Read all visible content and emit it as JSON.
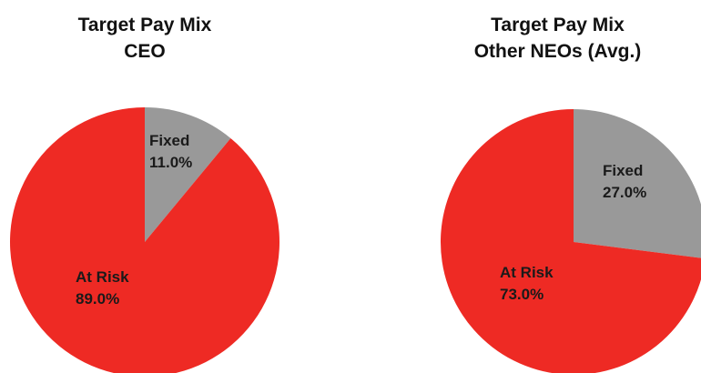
{
  "chart_data": [
    {
      "type": "pie",
      "title": [
        "Target Pay Mix",
        "CEO"
      ],
      "slices": [
        {
          "label": "Fixed",
          "value": 11.0,
          "value_label": "11.0%",
          "color": "#999999"
        },
        {
          "label": "At Risk",
          "value": 89.0,
          "value_label": "89.0%",
          "color": "#ee2a24"
        }
      ]
    },
    {
      "type": "pie",
      "title": [
        "Target Pay Mix",
        "Other NEOs (Avg.)"
      ],
      "slices": [
        {
          "label": "Fixed",
          "value": 27.0,
          "value_label": "27.0%",
          "color": "#999999"
        },
        {
          "label": "At Risk",
          "value": 73.0,
          "value_label": "73.0%",
          "color": "#ee2a24"
        }
      ]
    }
  ]
}
